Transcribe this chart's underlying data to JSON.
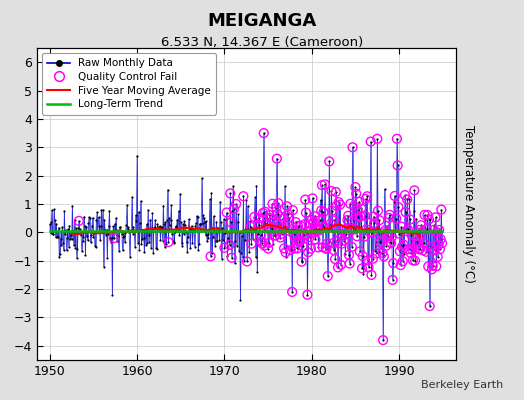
{
  "title": "MEIGANGA",
  "subtitle": "6.533 N, 14.367 E (Cameroon)",
  "ylabel": "Temperature Anomaly (°C)",
  "credit": "Berkeley Earth",
  "xlim": [
    1948.5,
    1996.5
  ],
  "ylim": [
    -4.5,
    6.5
  ],
  "yticks": [
    -4,
    -3,
    -2,
    -1,
    0,
    1,
    2,
    3,
    4,
    5,
    6
  ],
  "xticks": [
    1950,
    1960,
    1970,
    1980,
    1990
  ],
  "bg_color": "#e0e0e0",
  "plot_bg_color": "#ffffff",
  "raw_color": "#0000cc",
  "raw_marker_color": "#000000",
  "qc_color": "#ff00ff",
  "ma_color": "#ff0000",
  "trend_color": "#00bb00",
  "seed_data": 42,
  "seed_qc": 77,
  "years_start": 1950,
  "years_end": 1995
}
